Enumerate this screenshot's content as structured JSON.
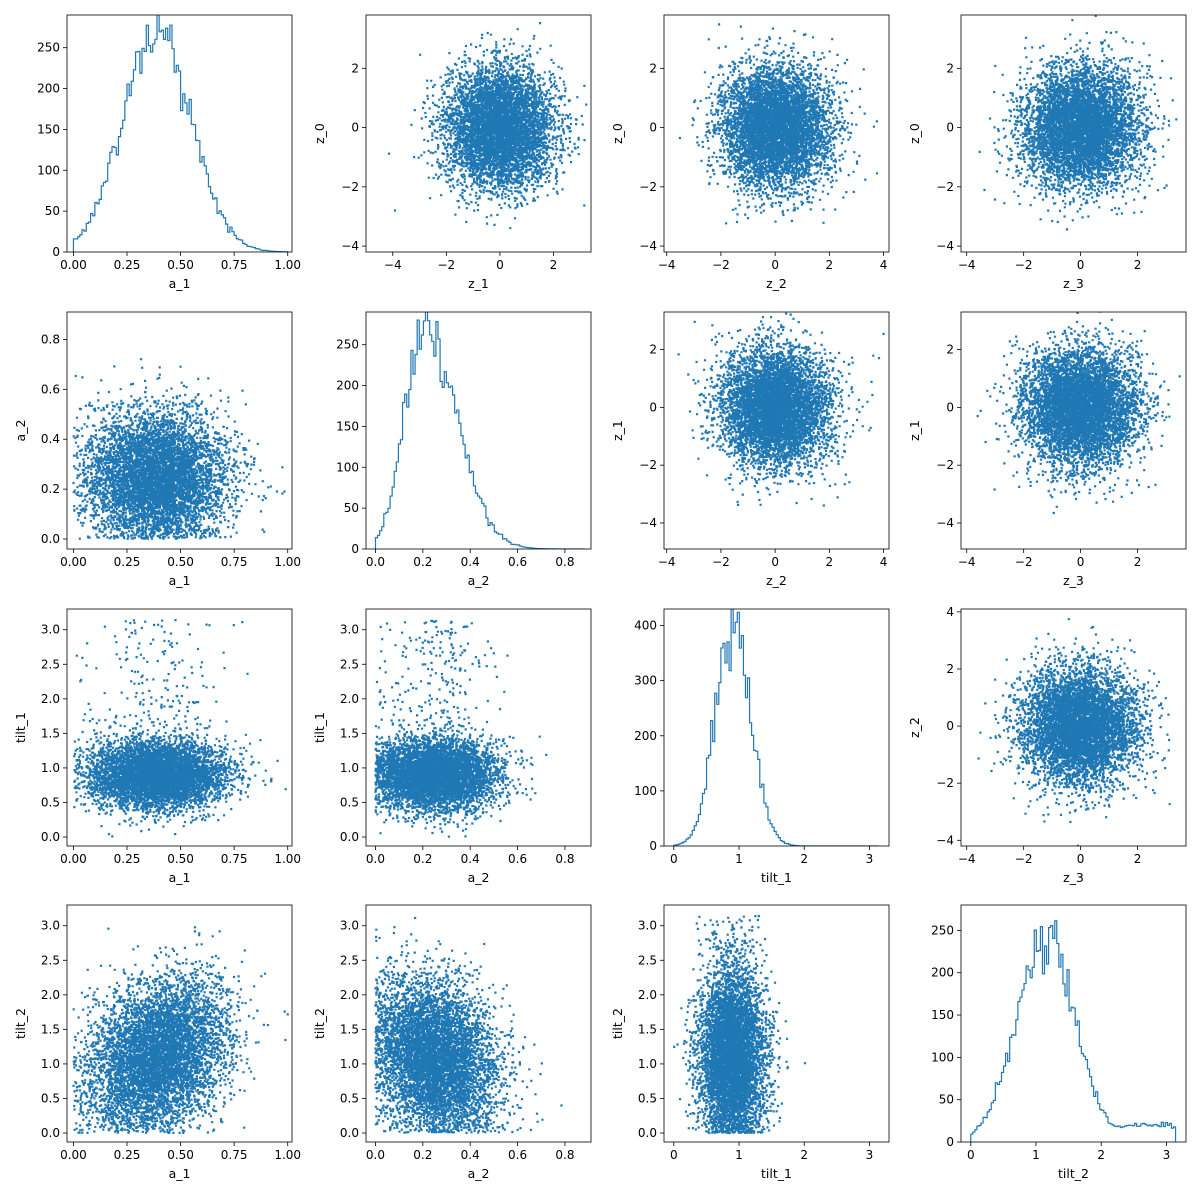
{
  "accent_color": "#1f77b4",
  "chart_data": [
    {
      "type": "histogram",
      "xlabel": "a_1",
      "ylabel": "",
      "xlim": [
        -0.03,
        1.02
      ],
      "ylim": [
        0,
        290
      ],
      "xticks": [
        0,
        0.25,
        0.5,
        0.75,
        1
      ],
      "xtick_labels": [
        "0.00",
        "0.25",
        "0.50",
        "0.75",
        "1.00"
      ],
      "yticks": [
        0,
        50,
        100,
        150,
        200,
        250
      ],
      "ytick_labels": [
        "0",
        "50",
        "100",
        "150",
        "200",
        "250"
      ],
      "distribution": {
        "family": "normal",
        "mean": 0.39,
        "sd": 0.16,
        "peak": 270,
        "support": [
          0,
          1
        ]
      }
    },
    {
      "type": "scatter",
      "xlabel": "z_1",
      "ylabel": "z_0",
      "xlim": [
        -5,
        3.4
      ],
      "ylim": [
        -4.2,
        3.8
      ],
      "xticks": [
        -4,
        -2,
        0,
        2
      ],
      "xtick_labels": [
        "−4",
        "−2",
        "0",
        "2"
      ],
      "yticks": [
        -4,
        -2,
        0,
        2
      ],
      "ytick_labels": [
        "−4",
        "−2",
        "0",
        "2"
      ],
      "distribution": {
        "x": {
          "mean": 0,
          "sd": 1
        },
        "y": {
          "mean": 0,
          "sd": 1
        },
        "n": 6000
      }
    },
    {
      "type": "scatter",
      "xlabel": "z_2",
      "ylabel": "z_0",
      "xlim": [
        -4.1,
        4.2
      ],
      "ylim": [
        -4.2,
        3.8
      ],
      "xticks": [
        -4,
        -2,
        0,
        2,
        4
      ],
      "xtick_labels": [
        "−4",
        "−2",
        "0",
        "2",
        "4"
      ],
      "yticks": [
        -4,
        -2,
        0,
        2
      ],
      "ytick_labels": [
        "−4",
        "−2",
        "0",
        "2"
      ],
      "distribution": {
        "x": {
          "mean": 0,
          "sd": 1
        },
        "y": {
          "mean": 0,
          "sd": 1
        },
        "n": 6000
      }
    },
    {
      "type": "scatter",
      "xlabel": "z_3",
      "ylabel": "z_0",
      "xlim": [
        -4.2,
        3.7
      ],
      "ylim": [
        -4.2,
        3.8
      ],
      "xticks": [
        -4,
        -2,
        0,
        2
      ],
      "xtick_labels": [
        "−4",
        "−2",
        "0",
        "2"
      ],
      "yticks": [
        -4,
        -2,
        0,
        2
      ],
      "ytick_labels": [
        "−4",
        "−2",
        "0",
        "2"
      ],
      "distribution": {
        "x": {
          "mean": 0,
          "sd": 1
        },
        "y": {
          "mean": 0,
          "sd": 1
        },
        "n": 6000
      }
    },
    {
      "type": "scatter",
      "xlabel": "a_1",
      "ylabel": "a_2",
      "xlim": [
        -0.03,
        1.02
      ],
      "ylim": [
        -0.04,
        0.91
      ],
      "xticks": [
        0,
        0.25,
        0.5,
        0.75,
        1
      ],
      "xtick_labels": [
        "0.00",
        "0.25",
        "0.50",
        "0.75",
        "1.00"
      ],
      "yticks": [
        0,
        0.2,
        0.4,
        0.6,
        0.8
      ],
      "ytick_labels": [
        "0.0",
        "0.2",
        "0.4",
        "0.6",
        "0.8"
      ],
      "distribution": {
        "x": {
          "mean": 0.39,
          "sd": 0.16,
          "min": 0,
          "max": 1
        },
        "y": {
          "mean": 0.25,
          "sd": 0.13,
          "min": 0,
          "max": 0.88
        },
        "n": 6000
      }
    },
    {
      "type": "histogram",
      "xlabel": "a_2",
      "ylabel": "",
      "xlim": [
        -0.04,
        0.91
      ],
      "ylim": [
        0,
        290
      ],
      "xticks": [
        0,
        0.2,
        0.4,
        0.6,
        0.8
      ],
      "xtick_labels": [
        "0.0",
        "0.2",
        "0.4",
        "0.6",
        "0.8"
      ],
      "yticks": [
        0,
        50,
        100,
        150,
        200,
        250
      ],
      "ytick_labels": [
        "0",
        "50",
        "100",
        "150",
        "200",
        "250"
      ],
      "distribution": {
        "family": "skewed",
        "mode": 0.2,
        "sd_left": 0.08,
        "sd_right": 0.14,
        "peak": 270,
        "support": [
          0,
          0.88
        ]
      }
    },
    {
      "type": "scatter",
      "xlabel": "z_2",
      "ylabel": "z_1",
      "xlim": [
        -4.1,
        4.2
      ],
      "ylim": [
        -4.9,
        3.3
      ],
      "xticks": [
        -4,
        -2,
        0,
        2,
        4
      ],
      "xtick_labels": [
        "−4",
        "−2",
        "0",
        "2",
        "4"
      ],
      "yticks": [
        -4,
        -2,
        0,
        2
      ],
      "ytick_labels": [
        "−4",
        "−2",
        "0",
        "2"
      ],
      "distribution": {
        "x": {
          "mean": 0,
          "sd": 1
        },
        "y": {
          "mean": 0,
          "sd": 1
        },
        "n": 6000
      }
    },
    {
      "type": "scatter",
      "xlabel": "z_3",
      "ylabel": "z_1",
      "xlim": [
        -4.2,
        3.7
      ],
      "ylim": [
        -4.9,
        3.3
      ],
      "xticks": [
        -4,
        -2,
        0,
        2
      ],
      "xtick_labels": [
        "−4",
        "−2",
        "0",
        "2"
      ],
      "yticks": [
        -4,
        -2,
        0,
        2
      ],
      "ytick_labels": [
        "−4",
        "−2",
        "0",
        "2"
      ],
      "distribution": {
        "x": {
          "mean": 0,
          "sd": 1
        },
        "y": {
          "mean": 0,
          "sd": 1
        },
        "n": 6000
      }
    },
    {
      "type": "scatter",
      "xlabel": "a_1",
      "ylabel": "tilt_1",
      "xlim": [
        -0.03,
        1.02
      ],
      "ylim": [
        -0.13,
        3.3
      ],
      "xticks": [
        0,
        0.25,
        0.5,
        0.75,
        1
      ],
      "xtick_labels": [
        "0.00",
        "0.25",
        "0.50",
        "0.75",
        "1.00"
      ],
      "yticks": [
        0,
        0.5,
        1,
        1.5,
        2,
        2.5,
        3
      ],
      "ytick_labels": [
        "0.0",
        "0.5",
        "1.0",
        "1.5",
        "2.0",
        "2.5",
        "3.0"
      ],
      "distribution": {
        "x": {
          "mean": 0.39,
          "sd": 0.16,
          "min": 0,
          "max": 1
        },
        "y": {
          "mean": 0.9,
          "sd": 0.25,
          "min": 0,
          "max": 3.14
        },
        "outlier_fraction": 0.03,
        "n": 6000
      }
    },
    {
      "type": "scatter",
      "xlabel": "a_2",
      "ylabel": "tilt_1",
      "xlim": [
        -0.04,
        0.91
      ],
      "ylim": [
        -0.13,
        3.3
      ],
      "xticks": [
        0,
        0.2,
        0.4,
        0.6,
        0.8
      ],
      "xtick_labels": [
        "0.0",
        "0.2",
        "0.4",
        "0.6",
        "0.8"
      ],
      "yticks": [
        0,
        0.5,
        1,
        1.5,
        2,
        2.5,
        3
      ],
      "ytick_labels": [
        "0.0",
        "0.5",
        "1.0",
        "1.5",
        "2.0",
        "2.5",
        "3.0"
      ],
      "distribution": {
        "x": {
          "mean": 0.25,
          "sd": 0.13,
          "min": 0,
          "max": 0.88
        },
        "y": {
          "mean": 0.9,
          "sd": 0.25,
          "min": 0,
          "max": 3.14
        },
        "outlier_fraction": 0.03,
        "n": 6000
      }
    },
    {
      "type": "histogram",
      "xlabel": "tilt_1",
      "ylabel": "",
      "xlim": [
        -0.15,
        3.3
      ],
      "ylim": [
        0,
        430
      ],
      "xticks": [
        0,
        1,
        2,
        3
      ],
      "xtick_labels": [
        "0",
        "1",
        "2",
        "3"
      ],
      "yticks": [
        0,
        100,
        200,
        300,
        400
      ],
      "ytick_labels": [
        "0",
        "100",
        "200",
        "300",
        "400"
      ],
      "distribution": {
        "family": "normal",
        "mean": 0.92,
        "sd": 0.27,
        "peak": 400,
        "support": [
          0,
          3.14
        ]
      }
    },
    {
      "type": "scatter",
      "xlabel": "z_3",
      "ylabel": "z_2",
      "xlim": [
        -4.2,
        3.7
      ],
      "ylim": [
        -4.2,
        4.1
      ],
      "xticks": [
        -4,
        -2,
        0,
        2
      ],
      "xtick_labels": [
        "−4",
        "−2",
        "0",
        "2"
      ],
      "yticks": [
        -4,
        -2,
        0,
        2,
        4
      ],
      "ytick_labels": [
        "−4",
        "−2",
        "0",
        "2",
        "4"
      ],
      "distribution": {
        "x": {
          "mean": 0,
          "sd": 1
        },
        "y": {
          "mean": 0,
          "sd": 1
        },
        "n": 6000
      }
    },
    {
      "type": "scatter",
      "xlabel": "a_1",
      "ylabel": "tilt_2",
      "xlim": [
        -0.03,
        1.02
      ],
      "ylim": [
        -0.13,
        3.3
      ],
      "xticks": [
        0,
        0.25,
        0.5,
        0.75,
        1
      ],
      "xtick_labels": [
        "0.00",
        "0.25",
        "0.50",
        "0.75",
        "1.00"
      ],
      "yticks": [
        0,
        0.5,
        1,
        1.5,
        2,
        2.5,
        3
      ],
      "ytick_labels": [
        "0.0",
        "0.5",
        "1.0",
        "1.5",
        "2.0",
        "2.5",
        "3.0"
      ],
      "distribution": {
        "x": {
          "mean": 0.39,
          "sd": 0.16,
          "min": 0,
          "max": 1
        },
        "y": {
          "mean": 1.1,
          "sd": 0.55,
          "min": 0,
          "max": 3.14
        },
        "correlation": 0.25,
        "n": 6000
      }
    },
    {
      "type": "scatter",
      "xlabel": "a_2",
      "ylabel": "tilt_2",
      "xlim": [
        -0.04,
        0.91
      ],
      "ylim": [
        -0.13,
        3.3
      ],
      "xticks": [
        0,
        0.2,
        0.4,
        0.6,
        0.8
      ],
      "xtick_labels": [
        "0.0",
        "0.2",
        "0.4",
        "0.6",
        "0.8"
      ],
      "yticks": [
        0,
        0.5,
        1,
        1.5,
        2,
        2.5,
        3
      ],
      "ytick_labels": [
        "0.0",
        "0.5",
        "1.0",
        "1.5",
        "2.0",
        "2.5",
        "3.0"
      ],
      "distribution": {
        "x": {
          "mean": 0.25,
          "sd": 0.13,
          "min": 0,
          "max": 0.88
        },
        "y": {
          "mean": 1.1,
          "sd": 0.55,
          "min": 0,
          "max": 3.14
        },
        "correlation": -0.2,
        "n": 6000
      }
    },
    {
      "type": "scatter",
      "xlabel": "tilt_1",
      "ylabel": "tilt_2",
      "xlim": [
        -0.15,
        3.3
      ],
      "ylim": [
        -0.13,
        3.3
      ],
      "xticks": [
        0,
        1,
        2,
        3
      ],
      "xtick_labels": [
        "0",
        "1",
        "2",
        "3"
      ],
      "yticks": [
        0,
        0.5,
        1,
        1.5,
        2,
        2.5,
        3
      ],
      "ytick_labels": [
        "0.0",
        "0.5",
        "1.0",
        "1.5",
        "2.0",
        "2.5",
        "3.0"
      ],
      "distribution": {
        "x": {
          "mean": 0.9,
          "sd": 0.25,
          "min": 0,
          "max": 3.14
        },
        "y": {
          "mean": 1.1,
          "sd": 0.6,
          "min": 0,
          "max": 3.14
        },
        "outlier_fraction": 0.03,
        "n": 6000
      }
    },
    {
      "type": "histogram",
      "xlabel": "tilt_2",
      "ylabel": "",
      "xlim": [
        -0.15,
        3.3
      ],
      "ylim": [
        0,
        280
      ],
      "xticks": [
        0,
        1,
        2,
        3
      ],
      "xtick_labels": [
        "0",
        "1",
        "2",
        "3"
      ],
      "yticks": [
        0,
        50,
        100,
        150,
        200,
        250
      ],
      "ytick_labels": [
        "0",
        "50",
        "100",
        "150",
        "200",
        "250"
      ],
      "distribution": {
        "family": "normal",
        "mean": 1.15,
        "sd": 0.45,
        "peak": 245,
        "floor": 20,
        "support": [
          0,
          3.14
        ]
      }
    }
  ]
}
